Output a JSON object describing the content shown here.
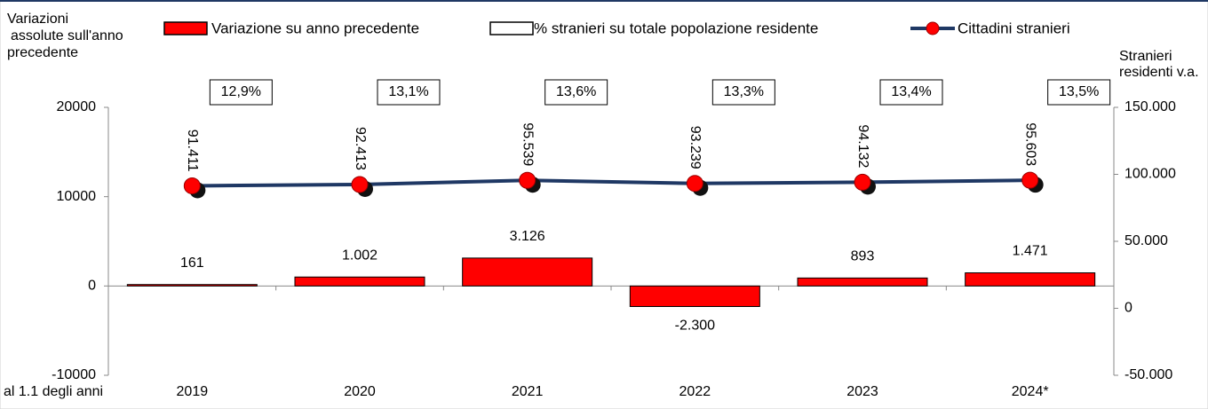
{
  "chart_data": {
    "type": "bar",
    "ylabel": [
      "Variazioni",
      "assolute sull'anno",
      "precedente"
    ],
    "y2label": [
      "Stranieri",
      "residenti v.a."
    ],
    "xlabel": "al 1.1 degli anni",
    "categories": [
      "2019",
      "2020",
      "2021",
      "2022",
      "2023",
      "2024*"
    ],
    "series": [
      {
        "name": "Variazione su anno precedente",
        "type": "bar",
        "color": "#ff0000",
        "values": [
          161,
          1002,
          3126,
          -2300,
          893,
          1471
        ],
        "value_labels": [
          "161",
          "1.002",
          "3.126",
          "-2.300",
          "893",
          "1.471"
        ]
      },
      {
        "name": "% stranieri su totale popolazione residente",
        "type": "box",
        "color": "#ffffff",
        "values": [
          12.9,
          13.1,
          13.6,
          13.3,
          13.4,
          13.5
        ],
        "value_labels": [
          "12,9%",
          "13,1%",
          "13,6%",
          "13,3%",
          "13,4%",
          "13,5%"
        ]
      },
      {
        "name": "Cittadini stranieri",
        "type": "line",
        "axis": "y2",
        "color": "#1f3864",
        "marker_color": "#ff0000",
        "values": [
          91411,
          92413,
          95539,
          93239,
          94132,
          95603
        ],
        "value_labels": [
          "91.411",
          "92.413",
          "95.539",
          "93.239",
          "94.132",
          "95.603"
        ]
      }
    ],
    "ylim": [
      -10000,
      20000
    ],
    "yticks": [
      -10000,
      0,
      10000,
      20000
    ],
    "y2lim": [
      -50000,
      150000
    ],
    "y2ticks": [
      {
        "value": -50000,
        "label": "-50.000"
      },
      {
        "value": 0,
        "label": "0"
      },
      {
        "value": 50000,
        "label": "50.000"
      },
      {
        "value": 100000,
        "label": "100.000"
      },
      {
        "value": 150000,
        "label": "150.000"
      }
    ],
    "grid": false
  }
}
